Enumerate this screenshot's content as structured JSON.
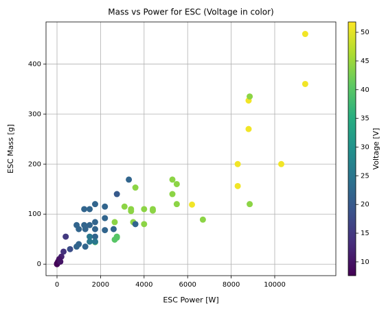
{
  "chart_data": {
    "type": "scatter",
    "title": "Mass vs Power for ESC (Voltage in color)",
    "x_label": "ESC Power [W]",
    "y_label": "ESC Mass [g]",
    "colorbar_label": "Voltage [V]",
    "colormap": "viridis",
    "grid": true,
    "xlim": [
      -505,
      12808
    ],
    "ylim": [
      -23,
      484
    ],
    "clim": [
      7.6,
      51.8
    ],
    "xticks": [
      0,
      2000,
      4000,
      6000,
      8000,
      10000
    ],
    "yticks": [
      0,
      100,
      200,
      300,
      400
    ],
    "cticks": [
      10,
      15,
      20,
      25,
      30,
      35,
      40,
      45,
      50
    ],
    "series": [
      {
        "name": "ESC",
        "x": [
          11400,
          11400,
          8800,
          8800,
          8300,
          8300,
          10300,
          6200,
          8850,
          8850,
          6700,
          5300,
          5500,
          5300,
          5500,
          4400,
          4400,
          4000,
          4000,
          3600,
          3100,
          3400,
          3400,
          3500,
          2650,
          2650,
          2750,
          2750,
          1750,
          3300,
          2750,
          2200,
          1750,
          1250,
          1500,
          2200,
          1750,
          1500,
          1250,
          900,
          1000,
          1300,
          1750,
          2200,
          2600,
          3600,
          1750,
          1500,
          1500,
          1300,
          900,
          1000,
          1750,
          600,
          400,
          300,
          200,
          100,
          50,
          0,
          0,
          150
        ],
        "y": [
          460,
          360,
          327,
          270,
          200,
          156,
          200,
          119,
          335,
          120,
          89,
          169,
          160,
          140,
          120,
          107,
          110,
          110,
          80,
          153,
          115,
          110,
          106,
          84,
          84,
          49,
          55,
          53,
          44,
          169,
          140,
          115,
          120,
          110,
          110,
          92,
          84,
          78,
          78,
          78,
          70,
          70,
          70,
          68,
          70,
          80,
          55,
          55,
          45,
          35,
          35,
          40,
          45,
          30,
          55,
          25,
          15,
          10,
          5,
          1,
          0,
          5
        ],
        "c": [
          51,
          51,
          51,
          51,
          51,
          51,
          51,
          51,
          44,
          44,
          44,
          44,
          44,
          44,
          44,
          44,
          44,
          44,
          44,
          44,
          44,
          44,
          44,
          44,
          44,
          40,
          40,
          40,
          40,
          22,
          20,
          22,
          22,
          22,
          22,
          22,
          22,
          22,
          22,
          22,
          22,
          22,
          22,
          22,
          22,
          22,
          22,
          25,
          25,
          22,
          22,
          22,
          25,
          18,
          15,
          14,
          12,
          10,
          9,
          8,
          8,
          10
        ]
      }
    ]
  }
}
